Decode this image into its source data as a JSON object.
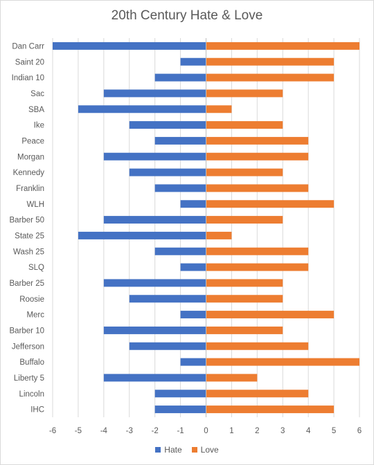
{
  "chart_data": {
    "type": "bar",
    "orientation": "horizontal",
    "title": "20th Century Hate & Love",
    "xlabel": "",
    "ylabel": "",
    "xlim": [
      -6,
      6
    ],
    "xticks": [
      -6,
      -5,
      -4,
      -3,
      -2,
      -1,
      0,
      1,
      2,
      3,
      4,
      5,
      6
    ],
    "grid": "vertical",
    "legend_position": "bottom",
    "categories": [
      "Dan Carr",
      "Saint 20",
      "Indian 10",
      "Sac",
      "SBA",
      "Ike",
      "Peace",
      "Morgan",
      "Kennedy",
      "Franklin",
      "WLH",
      "Barber 50",
      "State 25",
      "Wash 25",
      "SLQ",
      "Barber 25",
      "Roosie",
      "Merc",
      "Barber 10",
      "Jefferson",
      "Buffalo",
      "Liberty 5",
      "Lincoln",
      "IHC"
    ],
    "series": [
      {
        "name": "Hate",
        "color": "#4472c4",
        "values": [
          -6,
          -1,
          -2,
          -4,
          -5,
          -3,
          -2,
          -4,
          -3,
          -2,
          -1,
          -4,
          -5,
          -2,
          -1,
          -4,
          -3,
          -1,
          -4,
          -3,
          -1,
          -4,
          -2,
          -2
        ]
      },
      {
        "name": "Love",
        "color": "#ed7d31",
        "values": [
          6,
          5,
          5,
          3,
          1,
          3,
          4,
          4,
          3,
          4,
          5,
          3,
          1,
          4,
          4,
          3,
          3,
          5,
          3,
          4,
          6,
          2,
          4,
          5
        ]
      }
    ]
  }
}
